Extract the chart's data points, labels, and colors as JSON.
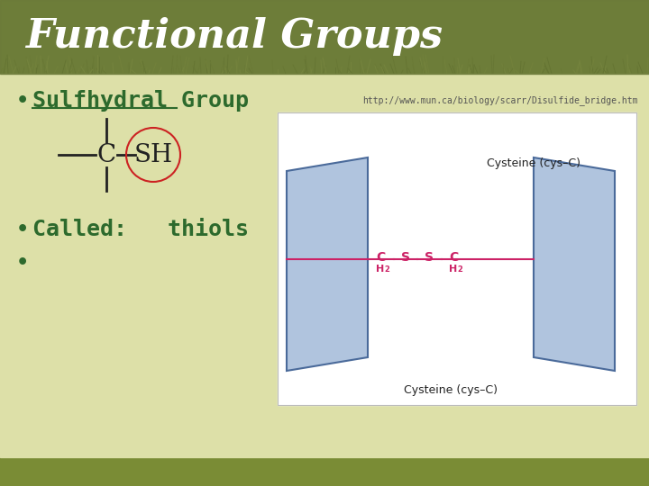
{
  "title": "Functional Groups",
  "title_color": "#ffffff",
  "title_bg_color": "#6b7a3a",
  "title_fontsize": 32,
  "bg_color": "#dde0a8",
  "bullet1": "Sulfhydral Group",
  "bullet1_color": "#2d6a2d",
  "bullet1_fontsize": 18,
  "url_text": "http://www.mun.ca/biology/scarr/Disulfide_bridge.htm",
  "url_color": "#555555",
  "url_fontsize": 7,
  "bullet2": "Called:   thiols",
  "bullet2_color": "#2d6a2d",
  "bullet2_fontsize": 18,
  "chemical_color": "#222222",
  "circle_color": "#cc2222",
  "circle_linewidth": 1.5,
  "bridge_color": "#cc2266",
  "para_face": "#b0c4de",
  "para_edge": "#4a6a9a",
  "cysteine_label_color": "#222222",
  "cysteine_label_fontsize": 9
}
